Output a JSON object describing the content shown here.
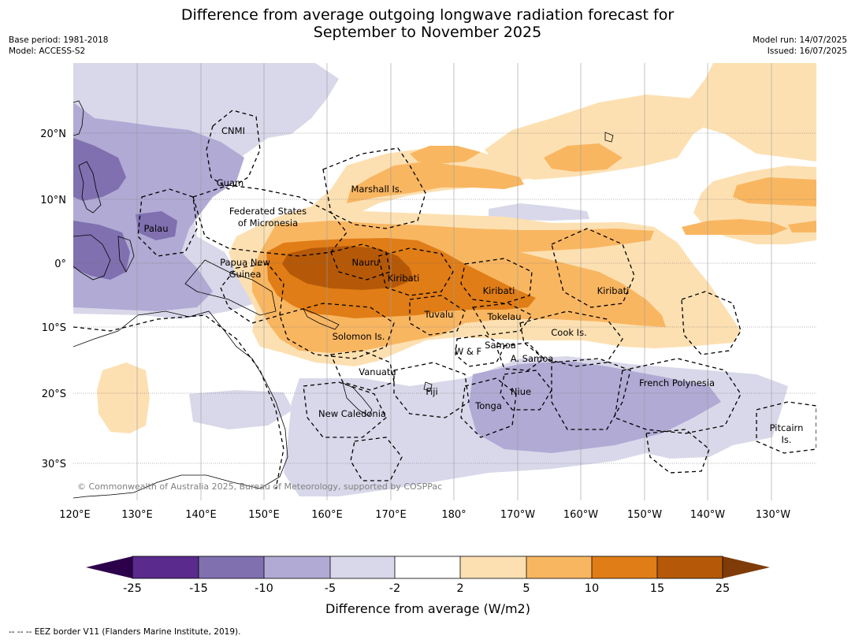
{
  "title": {
    "line1": "Difference from average outgoing longwave radiation forecast for",
    "line2": "September to November 2025"
  },
  "meta_left": {
    "base_period": "Base period: 1981-2018",
    "model": "Model: ACCESS-S2"
  },
  "meta_right": {
    "model_run": "Model run: 14/07/2025",
    "issued": "Issued: 16/07/2025"
  },
  "map": {
    "longitudes": [
      "120°E",
      "130°E",
      "140°E",
      "150°E",
      "160°E",
      "170°E",
      "180°",
      "170°W",
      "160°W",
      "150°W",
      "140°W",
      "130°W"
    ],
    "latitudes": [
      "20°N",
      "10°N",
      "0°",
      "10°S",
      "20°S",
      "30°S"
    ],
    "ocean_color": "#ffffff",
    "labels": {
      "cnmi": "CNMI",
      "guam": "Guam",
      "marshall": "Marshall Is.",
      "fsm_1": "Federated States",
      "fsm_2": "of Micronesia",
      "palau": "Palau",
      "png_1": "Papua New",
      "png_2": "Guinea",
      "nauru": "Nauru",
      "kiribati_1": "Kiribati",
      "kiribati_2": "Kiribati",
      "kiribati_3": "Kiribati",
      "tuvalu": "Tuvalu",
      "tokelau": "Tokelau",
      "cook": "Cook Is.",
      "solomon": "Solomon Is.",
      "wf": "W & F",
      "samoa": "Samoa",
      "asamoa": "A. Samoa",
      "vanuatu": "Vanuatu",
      "fiji": "Fiji",
      "niue": "Niue",
      "tonga": "Tonga",
      "fpoly": "French Polynesia",
      "newcal": "New Caledonia",
      "pitcairn_1": "Pitcairn",
      "pitcairn_2": "Is."
    },
    "copyright": "© Commonwealth of Australia 2025, Bureau of Meteorology, supported by COSPPac"
  },
  "colorbar": {
    "ticks": [
      "-25",
      "-15",
      "-10",
      "-5",
      "-2",
      "2",
      "5",
      "10",
      "15",
      "25"
    ],
    "colors": [
      "#5a2a8c",
      "#8070b0",
      "#b0aad4",
      "#d8d8ea",
      "#ffffff",
      "#fde0b2",
      "#f9b661",
      "#e07d17",
      "#b55908"
    ],
    "under_color": "#2d004b",
    "over_color": "#7f3b08",
    "label": "Difference from average (W/m2)"
  },
  "footer": "--  --  -- EEZ border V11 (Flanders Marine Institute, 2019)."
}
